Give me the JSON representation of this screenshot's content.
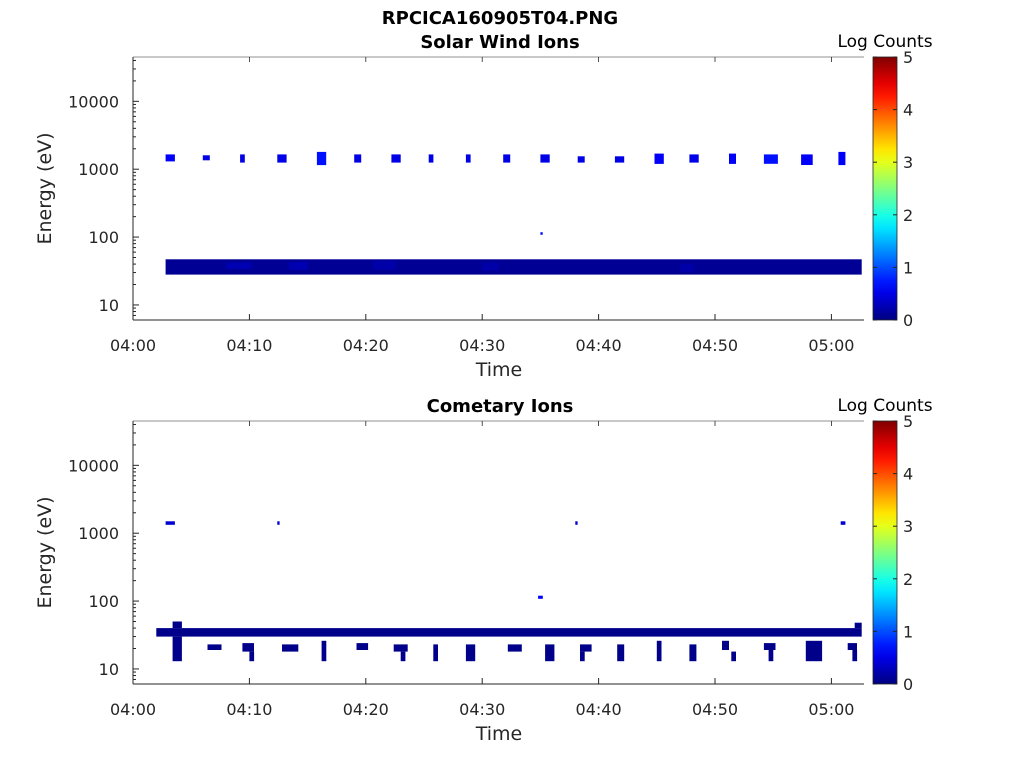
{
  "figure": {
    "title": "RPCICA160905T04.PNG"
  },
  "chart_data": [
    {
      "type": "heatmap",
      "title": "Solar Wind Ions",
      "xlabel": "Time",
      "ylabel": "Energy (eV)",
      "xtick_labels": [
        "04:00",
        "04:10",
        "04:20",
        "04:30",
        "04:40",
        "04:50",
        "05:00"
      ],
      "ytick_labels": [
        "10",
        "100",
        "1000",
        "10000"
      ],
      "ylim": [
        6,
        45000
      ],
      "yscale": "log",
      "colorbar": {
        "label": "Log Counts",
        "range": [
          0,
          5
        ],
        "ticks": [
          "0",
          "1",
          "2",
          "3",
          "4",
          "5"
        ],
        "colormap": "jet"
      },
      "blocks": [
        {
          "t0": 2.8,
          "t1": 3.6,
          "e0": 1300,
          "e1": 1650,
          "v": 0.6
        },
        {
          "t0": 6.0,
          "t1": 6.6,
          "e0": 1350,
          "e1": 1600,
          "v": 0.5
        },
        {
          "t0": 9.2,
          "t1": 9.6,
          "e0": 1250,
          "e1": 1650,
          "v": 0.5
        },
        {
          "t0": 12.4,
          "t1": 13.2,
          "e0": 1250,
          "e1": 1650,
          "v": 0.5
        },
        {
          "t0": 15.8,
          "t1": 16.6,
          "e0": 1150,
          "e1": 1800,
          "v": 0.7
        },
        {
          "t0": 19.0,
          "t1": 19.6,
          "e0": 1250,
          "e1": 1650,
          "v": 0.5
        },
        {
          "t0": 22.2,
          "t1": 23.0,
          "e0": 1250,
          "e1": 1650,
          "v": 0.5
        },
        {
          "t0": 25.4,
          "t1": 25.8,
          "e0": 1250,
          "e1": 1650,
          "v": 0.5
        },
        {
          "t0": 28.6,
          "t1": 29.0,
          "e0": 1250,
          "e1": 1650,
          "v": 0.5
        },
        {
          "t0": 31.8,
          "t1": 32.4,
          "e0": 1250,
          "e1": 1650,
          "v": 0.5
        },
        {
          "t0": 35.0,
          "t1": 35.8,
          "e0": 1250,
          "e1": 1650,
          "v": 0.5
        },
        {
          "t0": 38.2,
          "t1": 38.8,
          "e0": 1250,
          "e1": 1550,
          "v": 0.5
        },
        {
          "t0": 41.4,
          "t1": 42.2,
          "e0": 1250,
          "e1": 1550,
          "v": 0.5
        },
        {
          "t0": 44.8,
          "t1": 45.6,
          "e0": 1200,
          "e1": 1700,
          "v": 0.6
        },
        {
          "t0": 47.8,
          "t1": 48.6,
          "e0": 1250,
          "e1": 1650,
          "v": 0.5
        },
        {
          "t0": 51.2,
          "t1": 51.8,
          "e0": 1200,
          "e1": 1700,
          "v": 0.6
        },
        {
          "t0": 54.2,
          "t1": 55.4,
          "e0": 1200,
          "e1": 1650,
          "v": 0.7
        },
        {
          "t0": 57.4,
          "t1": 58.4,
          "e0": 1150,
          "e1": 1650,
          "v": 0.6
        },
        {
          "t0": 60.6,
          "t1": 61.2,
          "e0": 1150,
          "e1": 1800,
          "v": 0.6
        },
        {
          "t0": 35.0,
          "t1": 35.2,
          "e0": 108,
          "e1": 118,
          "v": 0.7
        },
        {
          "t0": 2.8,
          "t1": 62.6,
          "e0": 28,
          "e1": 47,
          "v": 0.1
        },
        {
          "t0": 8.0,
          "t1": 10.2,
          "e0": 34,
          "e1": 42,
          "v": 0.25
        },
        {
          "t0": 13.4,
          "t1": 15.0,
          "e0": 33,
          "e1": 43,
          "v": 0.25
        },
        {
          "t0": 20.6,
          "t1": 22.6,
          "e0": 33,
          "e1": 45,
          "v": 0.2
        },
        {
          "t0": 30.0,
          "t1": 31.4,
          "e0": 32,
          "e1": 42,
          "v": 0.2
        },
        {
          "t0": 47.0,
          "t1": 48.2,
          "e0": 31,
          "e1": 40,
          "v": 0.2
        }
      ]
    },
    {
      "type": "heatmap",
      "title": "Cometary Ions",
      "xlabel": "Time",
      "ylabel": "Energy (eV)",
      "xtick_labels": [
        "04:00",
        "04:10",
        "04:20",
        "04:30",
        "04:40",
        "04:50",
        "05:00"
      ],
      "ytick_labels": [
        "10",
        "100",
        "1000",
        "10000"
      ],
      "ylim": [
        6,
        45000
      ],
      "yscale": "log",
      "colorbar": {
        "label": "Log Counts",
        "range": [
          0,
          5
        ],
        "ticks": [
          "0",
          "1",
          "2",
          "3",
          "4",
          "5"
        ],
        "colormap": "jet"
      },
      "blocks": [
        {
          "t0": 2.8,
          "t1": 3.6,
          "e0": 1330,
          "e1": 1500,
          "v": 0.4
        },
        {
          "t0": 12.4,
          "t1": 12.6,
          "e0": 1330,
          "e1": 1500,
          "v": 0.4
        },
        {
          "t0": 38.0,
          "t1": 38.2,
          "e0": 1330,
          "e1": 1500,
          "v": 0.4
        },
        {
          "t0": 60.8,
          "t1": 61.2,
          "e0": 1330,
          "e1": 1500,
          "v": 0.4
        },
        {
          "t0": 34.8,
          "t1": 35.2,
          "e0": 108,
          "e1": 120,
          "v": 0.6
        },
        {
          "t0": 2.0,
          "t1": 62.6,
          "e0": 30,
          "e1": 40,
          "v": 0.05
        },
        {
          "t0": 3.4,
          "t1": 4.2,
          "e0": 40,
          "e1": 50,
          "v": 0.05
        },
        {
          "t0": 3.4,
          "t1": 4.2,
          "e0": 13,
          "e1": 30,
          "v": 0.05
        },
        {
          "t0": 6.4,
          "t1": 7.6,
          "e0": 19,
          "e1": 23,
          "v": 0.05
        },
        {
          "t0": 9.4,
          "t1": 10.4,
          "e0": 18,
          "e1": 24,
          "v": 0.05
        },
        {
          "t0": 10.0,
          "t1": 10.4,
          "e0": 13,
          "e1": 18,
          "v": 0.05
        },
        {
          "t0": 12.8,
          "t1": 14.2,
          "e0": 18,
          "e1": 23,
          "v": 0.05
        },
        {
          "t0": 16.2,
          "t1": 16.6,
          "e0": 13,
          "e1": 26,
          "v": 0.05
        },
        {
          "t0": 19.2,
          "t1": 20.2,
          "e0": 19,
          "e1": 24,
          "v": 0.05
        },
        {
          "t0": 22.4,
          "t1": 23.6,
          "e0": 18,
          "e1": 23,
          "v": 0.05
        },
        {
          "t0": 23.0,
          "t1": 23.4,
          "e0": 13,
          "e1": 18,
          "v": 0.05
        },
        {
          "t0": 25.8,
          "t1": 26.2,
          "e0": 13,
          "e1": 23,
          "v": 0.05
        },
        {
          "t0": 28.6,
          "t1": 29.4,
          "e0": 13,
          "e1": 23,
          "v": 0.05
        },
        {
          "t0": 32.2,
          "t1": 33.4,
          "e0": 18,
          "e1": 23,
          "v": 0.05
        },
        {
          "t0": 35.4,
          "t1": 36.2,
          "e0": 13,
          "e1": 23,
          "v": 0.05
        },
        {
          "t0": 38.4,
          "t1": 39.4,
          "e0": 18,
          "e1": 23,
          "v": 0.05
        },
        {
          "t0": 38.4,
          "t1": 38.8,
          "e0": 13,
          "e1": 18,
          "v": 0.05
        },
        {
          "t0": 41.6,
          "t1": 42.2,
          "e0": 13,
          "e1": 23,
          "v": 0.05
        },
        {
          "t0": 45.0,
          "t1": 45.4,
          "e0": 13,
          "e1": 26,
          "v": 0.05
        },
        {
          "t0": 47.8,
          "t1": 48.4,
          "e0": 13,
          "e1": 23,
          "v": 0.05
        },
        {
          "t0": 50.6,
          "t1": 51.2,
          "e0": 19,
          "e1": 26,
          "v": 0.05
        },
        {
          "t0": 51.4,
          "t1": 51.8,
          "e0": 13,
          "e1": 18,
          "v": 0.05
        },
        {
          "t0": 54.2,
          "t1": 55.2,
          "e0": 19,
          "e1": 24,
          "v": 0.05
        },
        {
          "t0": 54.6,
          "t1": 55.0,
          "e0": 13,
          "e1": 19,
          "v": 0.05
        },
        {
          "t0": 57.8,
          "t1": 59.2,
          "e0": 13,
          "e1": 26,
          "v": 0.05
        },
        {
          "t0": 61.4,
          "t1": 62.2,
          "e0": 19,
          "e1": 24,
          "v": 0.05
        },
        {
          "t0": 61.8,
          "t1": 62.2,
          "e0": 13,
          "e1": 19,
          "v": 0.05
        },
        {
          "t0": 62.0,
          "t1": 62.6,
          "e0": 40,
          "e1": 48,
          "v": 0.05
        }
      ]
    }
  ]
}
